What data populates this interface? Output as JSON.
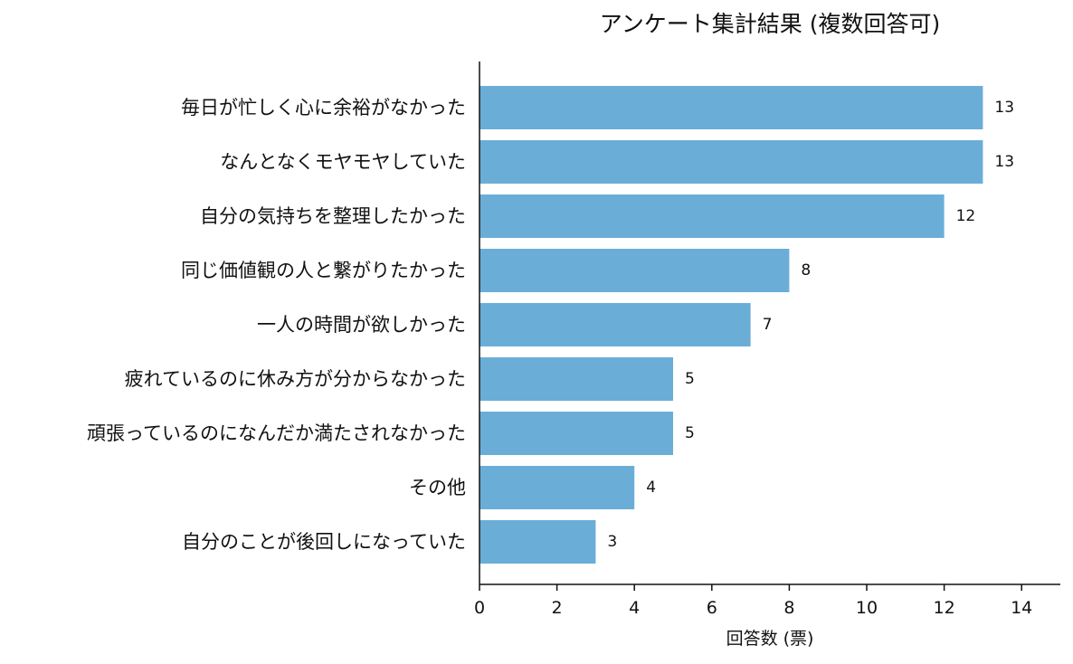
{
  "chart_data": {
    "type": "bar",
    "orientation": "horizontal",
    "title": "アンケート集計結果 (複数回答可)",
    "xlabel": "回答数 (票)",
    "ylabel": "",
    "categories": [
      "毎日が忙しく心に余裕がなかった",
      "なんとなくモヤモヤしていた",
      "自分の気持ちを整理したかった",
      "同じ価値観の人と繋がりたかった",
      "一人の時間が欲しかった",
      "疲れているのに休み方が分からなかった",
      "頑張っているのになんだか満たされなかった",
      "その他",
      "自分のことが後回しになっていた"
    ],
    "values": [
      13,
      13,
      12,
      8,
      7,
      5,
      5,
      4,
      3
    ],
    "xlim": [
      0,
      15
    ],
    "xticks": [
      "0",
      "2",
      "4",
      "6",
      "8",
      "10",
      "12",
      "14"
    ],
    "grid": false,
    "legend": "none",
    "bar_color": "#6aaed8",
    "axis_color": "#111111"
  }
}
